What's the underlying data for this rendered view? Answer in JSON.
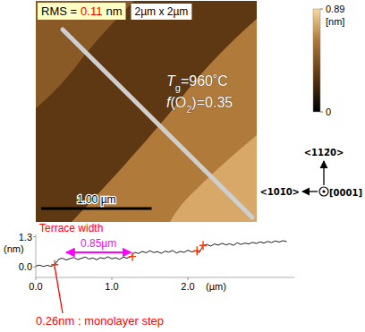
{
  "chart_data": {
    "type": "line",
    "x_label": "(µm)",
    "y_label": "(nm)",
    "color": "#000000",
    "x": [
      0.0,
      0.05,
      0.1,
      0.15,
      0.2,
      0.25,
      0.3,
      0.35,
      0.4,
      0.45,
      0.5,
      0.55,
      0.6,
      0.65,
      0.7,
      0.75,
      0.8,
      0.85,
      0.9,
      0.95,
      1.0,
      1.05,
      1.1,
      1.15,
      1.2,
      1.25,
      1.3,
      1.35,
      1.4,
      1.45,
      1.5,
      1.55,
      1.6,
      1.65,
      1.7,
      1.75,
      1.8,
      1.85,
      1.9,
      1.95,
      2.0,
      2.05,
      2.1,
      2.15,
      2.2,
      2.25,
      2.3,
      2.35,
      2.4,
      2.45,
      2.5,
      2.55,
      2.6,
      2.65,
      2.7,
      2.75,
      2.8,
      2.85,
      2.9,
      2.95,
      3.0,
      3.05,
      3.1,
      3.15,
      3.2,
      3.25,
      3.3
    ],
    "values": [
      0.04,
      0.08,
      0.02,
      0.07,
      0.03,
      0.09,
      0.33,
      0.38,
      0.3,
      0.36,
      0.41,
      0.32,
      0.37,
      0.43,
      0.34,
      0.39,
      0.31,
      0.4,
      0.36,
      0.44,
      0.35,
      0.4,
      0.33,
      0.42,
      0.38,
      0.45,
      0.63,
      0.58,
      0.67,
      0.61,
      0.7,
      0.62,
      0.66,
      0.59,
      0.68,
      0.64,
      0.71,
      0.6,
      0.67,
      0.63,
      0.72,
      0.65,
      0.69,
      0.62,
      0.92,
      0.97,
      0.9,
      0.99,
      0.94,
      1.02,
      0.95,
      1.0,
      0.93,
      1.04,
      0.97,
      1.03,
      0.99,
      1.06,
      1.01,
      1.08,
      1.03,
      1.1,
      1.05,
      1.12,
      1.07,
      1.13,
      1.09
    ],
    "xlim": [
      0,
      3.4
    ],
    "xticks": [
      {
        "value": 0,
        "label": "0.0"
      },
      {
        "value": 1,
        "label": "1.0"
      },
      {
        "value": 2,
        "label": "2.0"
      }
    ],
    "ylim": [
      -0.45,
      1.4
    ],
    "yticks": [
      {
        "value": 0,
        "label": "0.0"
      },
      {
        "value": 1.3,
        "label": "1.3"
      }
    ],
    "grid": false,
    "cursors": {
      "x": [
        0.25,
        1.27,
        2.12,
        2.2
      ],
      "y": [
        0.1,
        0.45,
        0.7,
        0.93
      ],
      "color": "#ff3300"
    },
    "annotations": [
      {
        "text": "Terrace width",
        "color": "#ff0000"
      },
      {
        "text": "0.85µm",
        "color": "#ff00ff",
        "x": [
          0.4,
          1.25
        ]
      },
      {
        "text": "0.26nm : monolayer step",
        "color": "#ff0000",
        "x": 0.25,
        "y": 0.1
      }
    ]
  },
  "afm_image": {
    "field": {
      "label": "2µm x 2µm",
      "width": 2
    },
    "rms": {
      "label": "RMS =",
      "value": 0.11,
      "unit": "nm"
    },
    "conditions": [
      {
        "symbol": "T",
        "subscript": "g",
        "text": "=960˚C"
      },
      {
        "symbol": "f",
        "text_before": "(O",
        "subscript": "2",
        "text": ")=0.35"
      }
    ],
    "scale_bar": {
      "value": 1,
      "label": "1.00 µm"
    },
    "colorbar": {
      "range": [
        0,
        0.89
      ],
      "ticks": [
        0,
        0.89
      ],
      "unit": "[nm]"
    },
    "directions": {
      "up": "<112̄0>",
      "left": "<101̄0>",
      "out": "[0001]"
    }
  }
}
